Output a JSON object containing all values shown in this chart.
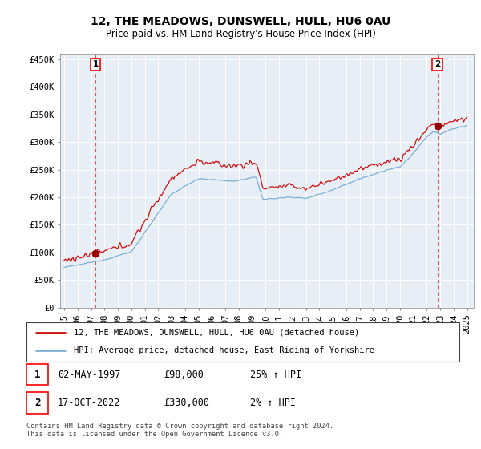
{
  "title": "12, THE MEADOWS, DUNSWELL, HULL, HU6 0AU",
  "subtitle": "Price paid vs. HM Land Registry's House Price Index (HPI)",
  "legend_line1": "12, THE MEADOWS, DUNSWELL, HULL, HU6 0AU (detached house)",
  "legend_line2": "HPI: Average price, detached house, East Riding of Yorkshire",
  "note": "Contains HM Land Registry data © Crown copyright and database right 2024.\nThis data is licensed under the Open Government Licence v3.0.",
  "point1_date": "02-MAY-1997",
  "point1_price": "£98,000",
  "point1_hpi": "25% ↑ HPI",
  "point2_date": "17-OCT-2022",
  "point2_price": "£330,000",
  "point2_hpi": "2% ↑ HPI",
  "sale1_x": 1997.33,
  "sale1_y": 98000,
  "sale2_x": 2022.79,
  "sale2_y": 330000,
  "hpi_color": "#7bafd4",
  "price_color": "#cc1111",
  "point_color": "#990000",
  "dashed_color": "#dd4444",
  "plot_bg": "#e8eef5",
  "ylim_min": 0,
  "ylim_max": 460000,
  "xlim_min": 1994.7,
  "xlim_max": 2025.5,
  "yticks": [
    0,
    50000,
    100000,
    150000,
    200000,
    250000,
    300000,
    350000,
    400000,
    450000
  ],
  "ytick_labels": [
    "£0",
    "£50K",
    "£100K",
    "£150K",
    "£200K",
    "£250K",
    "£300K",
    "£350K",
    "£400K",
    "£450K"
  ],
  "xtick_years": [
    1995,
    1996,
    1997,
    1998,
    1999,
    2000,
    2001,
    2002,
    2003,
    2004,
    2005,
    2006,
    2007,
    2008,
    2009,
    2010,
    2011,
    2012,
    2013,
    2014,
    2015,
    2016,
    2017,
    2018,
    2019,
    2020,
    2021,
    2022,
    2023,
    2024,
    2025
  ]
}
